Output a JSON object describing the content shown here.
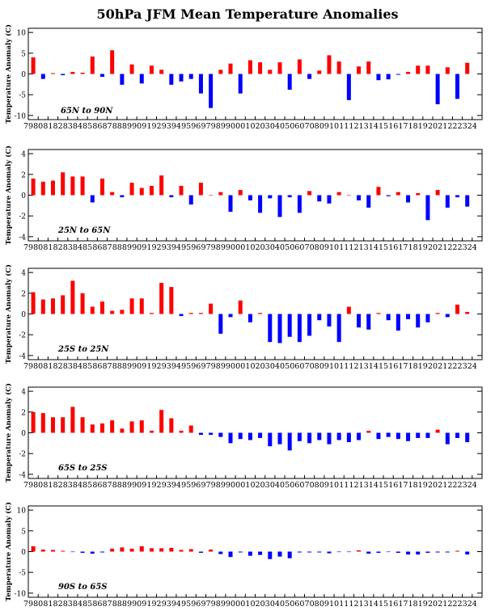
{
  "title": "50hPa JFM Mean Temperature Anomalies",
  "colors": {
    "positive": "#ff0000",
    "negative": "#0000ff"
  },
  "chart_data": [
    {
      "type": "bar",
      "title": "50hPa JFM Mean Temperature Anomalies",
      "region": "65N to 90N",
      "ylabel": "Temperature Anomaly (C)",
      "ylim": [
        -11,
        11
      ],
      "yticks": [
        -10,
        -5,
        0,
        5,
        10
      ],
      "grid": false,
      "categories": [
        "79",
        "80",
        "81",
        "82",
        "83",
        "84",
        "85",
        "86",
        "87",
        "88",
        "89",
        "90",
        "91",
        "92",
        "93",
        "94",
        "95",
        "96",
        "97",
        "98",
        "99",
        "00",
        "01",
        "02",
        "03",
        "04",
        "05",
        "06",
        "07",
        "08",
        "09",
        "10",
        "11",
        "12",
        "13",
        "14",
        "15",
        "16",
        "17",
        "18",
        "19",
        "20",
        "21",
        "22",
        "23",
        "24"
      ],
      "values": [
        4.0,
        -1.2,
        0.2,
        -0.3,
        0.5,
        0.3,
        4.2,
        -0.7,
        5.7,
        -2.6,
        2.3,
        -2.3,
        2.0,
        1.0,
        -2.6,
        -1.8,
        -1.2,
        -4.7,
        -8.2,
        1.0,
        2.5,
        -4.7,
        3.3,
        2.8,
        1.0,
        2.8,
        -3.8,
        3.5,
        -1.2,
        0.8,
        4.5,
        3.0,
        -6.3,
        1.8,
        3.0,
        -1.5,
        -1.3,
        -0.2,
        0.5,
        2.0,
        2.0,
        -7.3,
        1.6,
        -6.0,
        2.7,
        null
      ]
    },
    {
      "type": "bar",
      "region": "25N to 65N",
      "ylabel": "Temperature Anomaly (C)",
      "ylim": [
        -4.4,
        4.4
      ],
      "yticks": [
        -4,
        -2,
        0,
        2,
        4
      ],
      "grid": false,
      "categories": [
        "79",
        "80",
        "81",
        "82",
        "83",
        "84",
        "85",
        "86",
        "87",
        "88",
        "89",
        "90",
        "91",
        "92",
        "93",
        "94",
        "95",
        "96",
        "97",
        "98",
        "99",
        "00",
        "01",
        "02",
        "03",
        "04",
        "05",
        "06",
        "07",
        "08",
        "09",
        "10",
        "11",
        "12",
        "13",
        "14",
        "15",
        "16",
        "17",
        "18",
        "19",
        "20",
        "21",
        "22",
        "23",
        "24"
      ],
      "values": [
        1.6,
        1.3,
        1.4,
        2.2,
        1.8,
        1.8,
        -0.7,
        1.6,
        0.3,
        -0.2,
        1.2,
        0.7,
        0.9,
        1.9,
        -0.2,
        0.9,
        -0.9,
        1.2,
        0.0,
        0.3,
        -1.6,
        0.5,
        -0.5,
        -1.7,
        -0.3,
        -2.1,
        -0.2,
        -1.7,
        0.4,
        -0.6,
        -0.8,
        0.3,
        0.0,
        -0.5,
        -1.2,
        0.8,
        -0.1,
        0.3,
        -0.7,
        0.2,
        -2.4,
        0.5,
        -1.2,
        -0.2,
        -1.1,
        null
      ]
    },
    {
      "type": "bar",
      "region": "25S to 25N",
      "ylabel": "Temperature Anomaly (C)",
      "ylim": [
        -4.4,
        4.4
      ],
      "yticks": [
        -4,
        -2,
        0,
        2,
        4
      ],
      "grid": false,
      "categories": [
        "79",
        "80",
        "81",
        "82",
        "83",
        "84",
        "85",
        "86",
        "87",
        "88",
        "89",
        "90",
        "91",
        "92",
        "93",
        "94",
        "95",
        "96",
        "97",
        "98",
        "99",
        "00",
        "01",
        "02",
        "03",
        "04",
        "05",
        "06",
        "07",
        "08",
        "09",
        "10",
        "11",
        "12",
        "13",
        "14",
        "15",
        "16",
        "17",
        "18",
        "19",
        "20",
        "21",
        "22",
        "23",
        "24"
      ],
      "values": [
        2.1,
        1.4,
        1.5,
        1.8,
        3.2,
        2.0,
        0.7,
        1.2,
        0.3,
        0.4,
        1.5,
        1.5,
        0.1,
        3.0,
        2.6,
        -0.2,
        0.1,
        0.1,
        1.0,
        -1.9,
        -0.3,
        1.3,
        -0.8,
        0.1,
        -2.7,
        -2.8,
        -2.2,
        -2.7,
        -2.1,
        -0.6,
        -1.2,
        -2.7,
        0.7,
        -1.3,
        -1.5,
        0.1,
        -0.6,
        -1.6,
        -0.5,
        -1.3,
        -0.8,
        0.1,
        -0.3,
        0.9,
        0.2,
        null
      ]
    },
    {
      "type": "bar",
      "region": "65S to 25S",
      "ylabel": "Temperature Anomaly (C)",
      "ylim": [
        -4.4,
        4.4
      ],
      "yticks": [
        -4,
        -2,
        0,
        2,
        4
      ],
      "grid": false,
      "categories": [
        "79",
        "80",
        "81",
        "82",
        "83",
        "84",
        "85",
        "86",
        "87",
        "88",
        "89",
        "90",
        "91",
        "92",
        "93",
        "94",
        "95",
        "96",
        "97",
        "98",
        "99",
        "00",
        "01",
        "02",
        "03",
        "04",
        "05",
        "06",
        "07",
        "08",
        "09",
        "10",
        "11",
        "12",
        "13",
        "14",
        "15",
        "16",
        "17",
        "18",
        "19",
        "20",
        "21",
        "22",
        "23",
        "24"
      ],
      "values": [
        2.0,
        1.9,
        1.5,
        1.5,
        2.5,
        1.5,
        0.8,
        0.9,
        1.2,
        0.4,
        1.1,
        1.2,
        0.2,
        2.2,
        1.4,
        0.2,
        0.7,
        -0.2,
        -0.2,
        -0.4,
        -1.0,
        -0.6,
        -0.7,
        -0.5,
        -1.3,
        -1.1,
        -1.7,
        -0.8,
        -1.0,
        -0.7,
        -1.1,
        -0.7,
        -0.9,
        -0.7,
        0.2,
        -0.6,
        -0.4,
        -0.6,
        -0.8,
        -0.5,
        -0.5,
        0.3,
        -1.1,
        -0.5,
        -0.9,
        null
      ]
    },
    {
      "type": "bar",
      "region": "90S to 65S",
      "ylabel": "Temperature Anomaly (C)",
      "ylim": [
        -11,
        11
      ],
      "yticks": [
        -10,
        -5,
        0,
        5,
        10
      ],
      "grid": false,
      "categories": [
        "79",
        "80",
        "81",
        "82",
        "83",
        "84",
        "85",
        "86",
        "87",
        "88",
        "89",
        "90",
        "91",
        "92",
        "93",
        "94",
        "95",
        "96",
        "97",
        "98",
        "99",
        "00",
        "01",
        "02",
        "03",
        "04",
        "05",
        "06",
        "07",
        "08",
        "09",
        "10",
        "11",
        "12",
        "13",
        "14",
        "15",
        "16",
        "17",
        "18",
        "19",
        "20",
        "21",
        "22",
        "23",
        "24"
      ],
      "values": [
        1.3,
        0.5,
        0.4,
        0.2,
        -0.1,
        -0.3,
        -0.5,
        -0.2,
        0.7,
        1.0,
        0.7,
        1.3,
        0.8,
        0.8,
        0.9,
        0.4,
        0.6,
        -0.3,
        0.5,
        -0.6,
        -1.3,
        -0.2,
        -1.0,
        -0.8,
        -1.8,
        -1.2,
        -1.6,
        -0.2,
        -0.2,
        -0.2,
        -0.4,
        -0.1,
        -0.1,
        0.3,
        -0.5,
        -0.3,
        -0.1,
        -0.3,
        -0.7,
        -0.7,
        -0.3,
        -0.2,
        -0.2,
        0.2,
        -0.7,
        null
      ]
    }
  ]
}
